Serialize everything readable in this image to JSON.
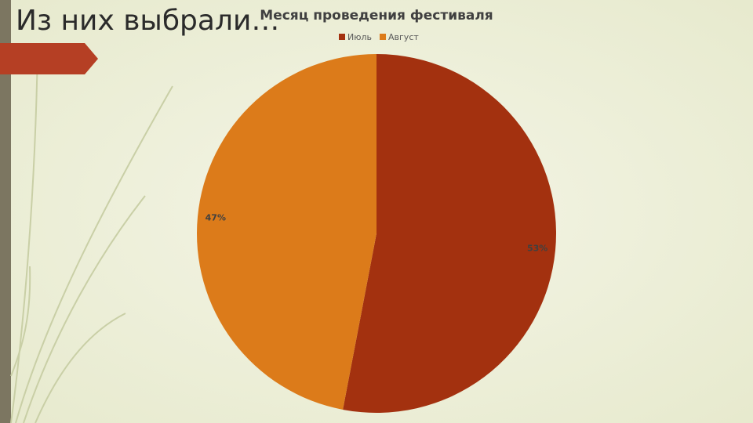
{
  "slide": {
    "title": "Из них выбрали…"
  },
  "chart_data": {
    "type": "pie",
    "title": "Месяц проведения фестиваля",
    "categories": [
      "Июль",
      "Август"
    ],
    "values": [
      53,
      47
    ],
    "value_labels": [
      "53%",
      "47%"
    ],
    "colors": [
      "#a3310f",
      "#dc7b1a"
    ],
    "legend": "top"
  }
}
